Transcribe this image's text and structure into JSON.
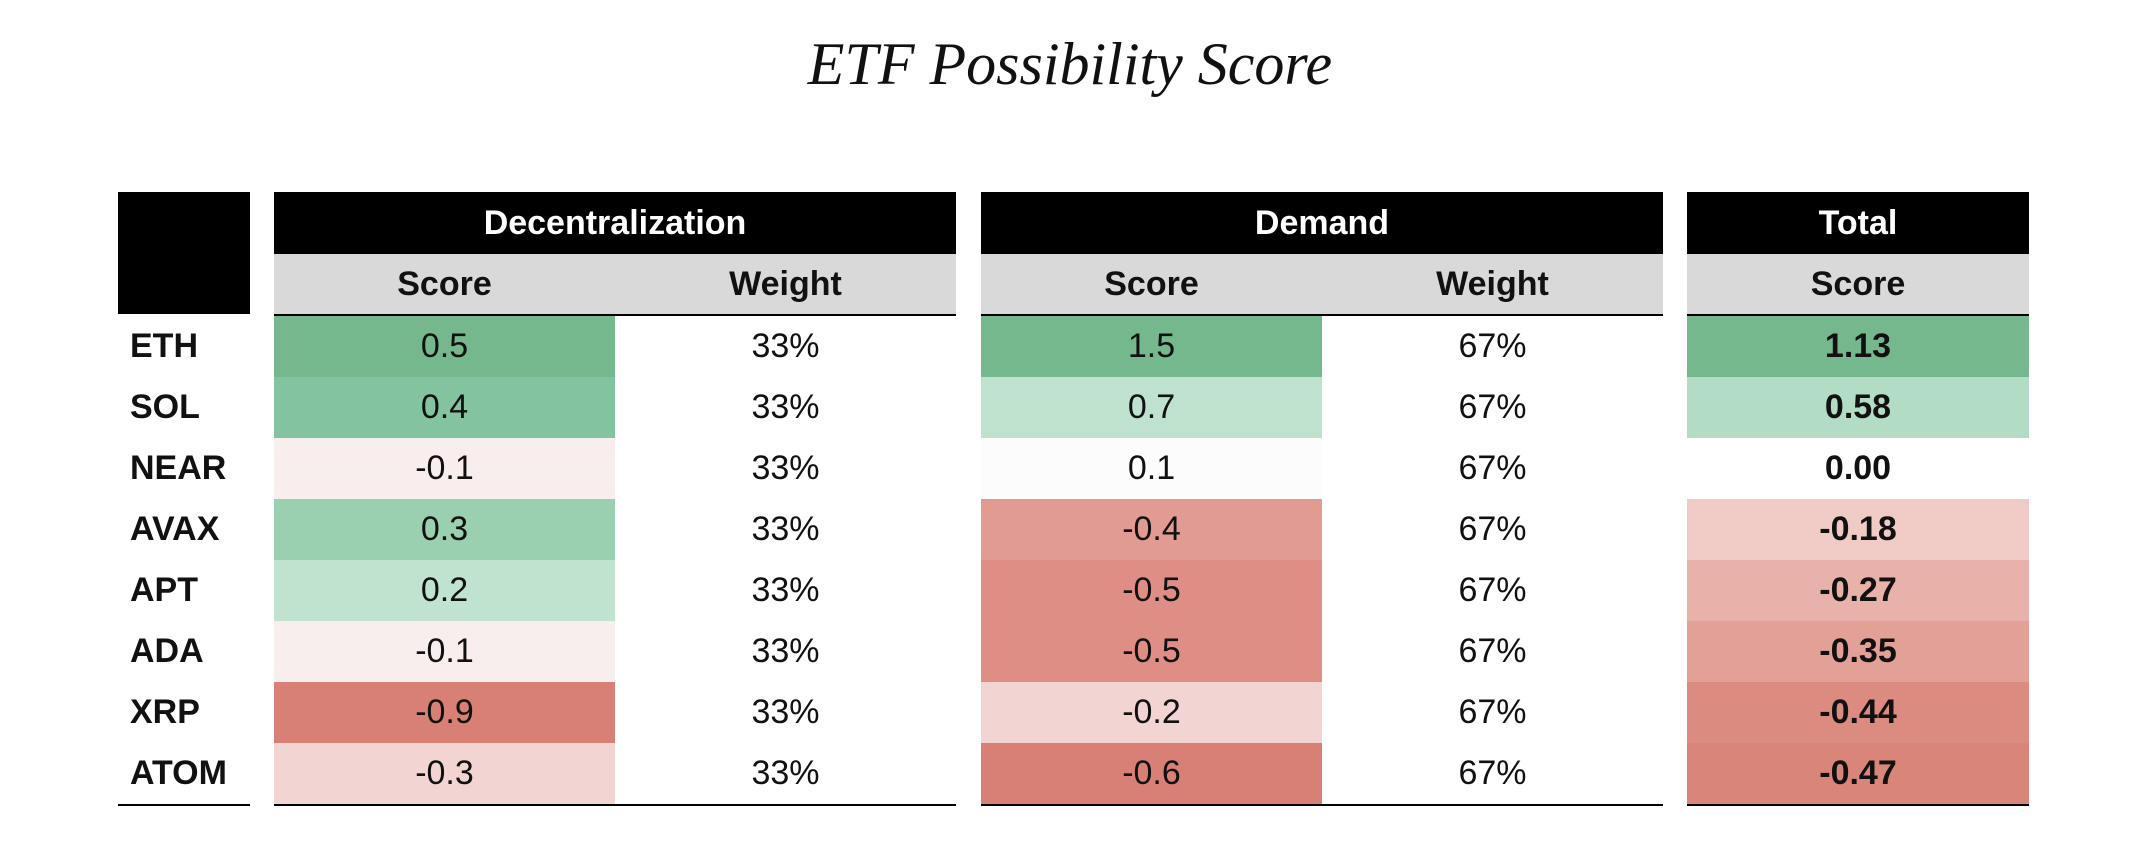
{
  "title": "ETF Possibility Score",
  "groups": [
    "Decentralization",
    "Demand",
    "Total"
  ],
  "subheaders": [
    "Score",
    "Weight",
    "Score",
    "Weight",
    "Score"
  ],
  "rows": [
    [
      "ETH",
      "0.5",
      "33%",
      "1.5",
      "67%",
      "1.13"
    ],
    [
      "SOL",
      "0.4",
      "33%",
      "0.7",
      "67%",
      "0.58"
    ],
    [
      "NEAR",
      "-0.1",
      "33%",
      "0.1",
      "67%",
      "0.00"
    ],
    [
      "AVAX",
      "0.3",
      "33%",
      "-0.4",
      "67%",
      "-0.18"
    ],
    [
      "APT",
      "0.2",
      "33%",
      "-0.5",
      "67%",
      "-0.27"
    ],
    [
      "ADA",
      "-0.1",
      "33%",
      "-0.5",
      "67%",
      "-0.35"
    ],
    [
      "XRP",
      "-0.9",
      "33%",
      "-0.2",
      "67%",
      "-0.44"
    ],
    [
      "ATOM",
      "-0.3",
      "33%",
      "-0.6",
      "67%",
      "-0.47"
    ]
  ],
  "fills": [
    [
      "#76b88e",
      "#76b88e",
      "#76b88e"
    ],
    [
      "#84c39f",
      "#bfe2cf",
      "#b3dcc5"
    ],
    [
      "#f9eeee",
      "#fbfcfb",
      "#ffffff"
    ],
    [
      "#9ad0b0",
      "#e19b92",
      "#f0cbc6"
    ],
    [
      "#c0e3d0",
      "#de8e84",
      "#e8b2ab"
    ],
    [
      "#f9eeee",
      "#de8e84",
      "#e3a097"
    ],
    [
      "#d88075",
      "#f2d5d2",
      "#dc8b81"
    ],
    [
      "#f2d5d2",
      "#d88075",
      "#d9857a"
    ]
  ]
}
